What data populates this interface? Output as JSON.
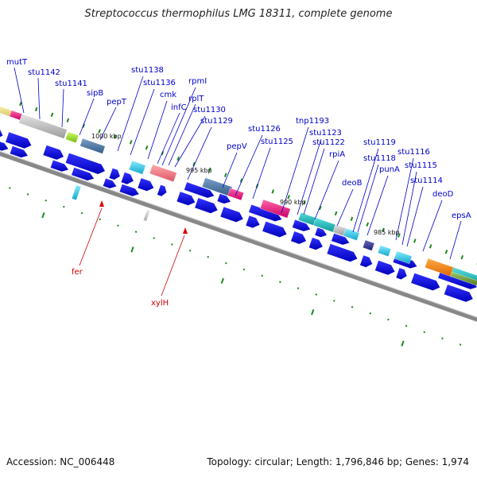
{
  "title": "Streptococcus thermophilus LMG 18311, complete genome",
  "footer": {
    "accession": "Accession: NC_006448",
    "topology": "Topology: circular; Length: 1,796,846 bp; Genes: 1,974"
  },
  "ticks": [
    "1000 kbp",
    "995 kbp",
    "990 kbp",
    "985 kbp"
  ],
  "gene_labels": [
    "mutT",
    "stu1142",
    "stu1141",
    "sipB",
    "pepT",
    "stu1138",
    "stu1136",
    "cmk",
    "infC",
    "rpmI",
    "rplT",
    "stu1130",
    "stu1129",
    "pepV",
    "stu1126",
    "stu1125",
    "tnp1193",
    "stu1123",
    "stu1122",
    "rpiA",
    "deoB",
    "stu1119",
    "stu1118",
    "punA",
    "stu1116",
    "stu1115",
    "stu1114",
    "deoD",
    "epsA"
  ],
  "inner_labels": [
    "fer",
    "xylH"
  ],
  "colors": {
    "label_blue": "#0000cc",
    "label_red": "#cc0000",
    "arrow_blue": "#0000ee",
    "backbone": "#888888",
    "tick_green": "#1a8a1a"
  }
}
